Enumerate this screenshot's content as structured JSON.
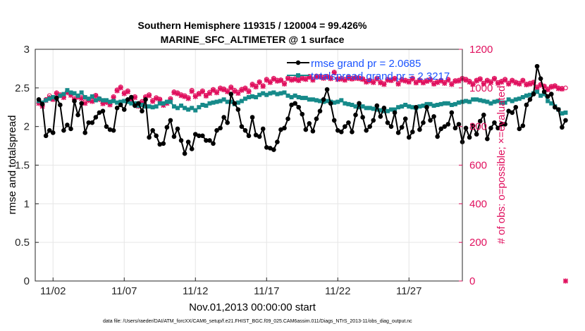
{
  "chart_data": {
    "type": "line",
    "title": "Southern Hemisphere 119315 / 120004 = 99.426%",
    "subtitle": "MARINE_SFC_ALTIMETER @ 1 surface",
    "xlabel": "Nov.01,2013 00:00:00 start",
    "ylabel_left": "rmse and totalspread",
    "ylabel_right": "# of obs: o=possible; ×=evaluated",
    "footnote": "data file: /Users/raeder/DAI/ATM_forcXX/CAM6_setup/f.e21.FHIST_BGC.f09_025.CAM6assim.011/Diags_NTrS_2013-11/obs_diag_output.nc",
    "x_range": [
      0.75,
      30.75
    ],
    "y_left_range": [
      0,
      3
    ],
    "y_right_range": [
      0,
      1200
    ],
    "x_ticks": [
      {
        "value": 2,
        "label": "11/02"
      },
      {
        "value": 7,
        "label": "11/07"
      },
      {
        "value": 12,
        "label": "11/12"
      },
      {
        "value": 17,
        "label": "11/17"
      },
      {
        "value": 22,
        "label": "11/22"
      },
      {
        "value": 27,
        "label": "11/27"
      }
    ],
    "y_left_ticks": [
      "0",
      "0.5",
      "1",
      "1.5",
      "2",
      "2.5",
      "3"
    ],
    "y_right_ticks": [
      "0",
      "200",
      "400",
      "600",
      "800",
      "1000",
      "1200"
    ],
    "grid": true,
    "legend_position": "top-right",
    "colors": {
      "rmse": "#000000",
      "spread": "#168a8a",
      "obs": "#e0105e",
      "legend_text": "#1a53ff"
    },
    "series": [
      {
        "name": "rmse grand pr = 2.0685",
        "axis": "left",
        "x_start": 1.0,
        "x_step": 0.25,
        "values": [
          2.35,
          2.29,
          1.88,
          1.95,
          1.92,
          2.37,
          2.28,
          1.95,
          2.02,
          1.97,
          2.33,
          2.15,
          2.3,
          1.92,
          2.05,
          2.05,
          2.12,
          2.18,
          2.2,
          2.0,
          1.96,
          1.95,
          2.24,
          2.28,
          2.22,
          2.35,
          2.38,
          2.27,
          2.3,
          2.2,
          2.35,
          1.86,
          1.95,
          1.88,
          1.77,
          1.78,
          1.99,
          2.08,
          1.87,
          1.97,
          1.82,
          1.65,
          1.8,
          1.71,
          1.9,
          1.88,
          1.88,
          1.82,
          1.82,
          1.78,
          1.95,
          1.98,
          2.12,
          2.05,
          2.42,
          2.3,
          2.22,
          2.0,
          1.95,
          1.88,
          2.12,
          1.89,
          1.87,
          1.97,
          1.73,
          1.72,
          1.7,
          1.8,
          1.96,
          1.98,
          2.1,
          2.28,
          2.3,
          2.25,
          2.16,
          1.96,
          2.04,
          1.94,
          2.1,
          2.2,
          2.35,
          2.48,
          2.3,
          2.08,
          1.95,
          1.93,
          2.0,
          2.05,
          1.93,
          2.15,
          2.3,
          2.12,
          1.95,
          2.0,
          2.08,
          2.27,
          2.13,
          2.24,
          2.05,
          2.0,
          2.18,
          1.92,
          1.99,
          2.1,
          1.86,
          1.93,
          2.25,
          1.96,
          2.05,
          2.25,
          2.08,
          2.13,
          1.87,
          1.97,
          2.0,
          2.03,
          2.18,
          1.98,
          2.03,
          1.8,
          1.98,
          1.86,
          2.01,
          1.9,
          2.07,
          2.15,
          1.84,
          1.98,
          2.05,
          1.98,
          2.03,
          2.03,
          2.2,
          2.18,
          2.25,
          1.97,
          2.01,
          2.28,
          2.35,
          2.42,
          2.78,
          2.62,
          2.45,
          2.39,
          2.42,
          2.25,
          2.22,
          1.99,
          2.08
        ]
      },
      {
        "name": "totalspread grand pr = 2.3217",
        "axis": "left",
        "x_start": 1.0,
        "x_step": 0.25,
        "values": [
          2.33,
          2.31,
          2.34,
          2.36,
          2.38,
          2.36,
          2.4,
          2.42,
          2.47,
          2.44,
          2.43,
          2.4,
          2.44,
          2.38,
          2.36,
          2.39,
          2.34,
          2.36,
          2.34,
          2.34,
          2.32,
          2.33,
          2.31,
          2.32,
          2.33,
          2.32,
          2.3,
          2.3,
          2.27,
          2.28,
          2.26,
          2.26,
          2.25,
          2.26,
          2.3,
          2.3,
          2.32,
          2.32,
          2.26,
          2.24,
          2.27,
          2.24,
          2.22,
          2.24,
          2.21,
          2.25,
          2.28,
          2.27,
          2.3,
          2.31,
          2.32,
          2.33,
          2.35,
          2.32,
          2.32,
          2.29,
          2.31,
          2.33,
          2.36,
          2.38,
          2.39,
          2.38,
          2.41,
          2.43,
          2.41,
          2.43,
          2.44,
          2.42,
          2.43,
          2.44,
          2.4,
          2.38,
          2.4,
          2.38,
          2.37,
          2.37,
          2.35,
          2.35,
          2.34,
          2.33,
          2.32,
          2.33,
          2.32,
          2.31,
          2.32,
          2.34,
          2.3,
          2.29,
          2.28,
          2.26,
          2.25,
          2.26,
          2.24,
          2.24,
          2.23,
          2.22,
          2.21,
          2.2,
          2.2,
          2.22,
          2.22,
          2.25,
          2.26,
          2.28,
          2.26,
          2.25,
          2.24,
          2.26,
          2.27,
          2.29,
          2.29,
          2.27,
          2.28,
          2.29,
          2.3,
          2.3,
          2.28,
          2.29,
          2.31,
          2.32,
          2.33,
          2.32,
          2.35,
          2.35,
          2.34,
          2.33,
          2.32,
          2.3,
          2.32,
          2.33,
          2.31,
          2.31,
          2.35,
          2.33,
          2.35,
          2.36,
          2.38,
          2.4,
          2.41,
          2.43,
          2.45,
          2.4,
          2.42,
          2.33,
          2.3,
          2.26,
          2.22,
          2.17,
          2.18
        ]
      },
      {
        "name": "possible",
        "axis": "right",
        "x_start": 1.0,
        "x_step": 0.25,
        "values": [
          925,
          910,
          940,
          960,
          945,
          975,
          965,
          955,
          980,
          968,
          945,
          958,
          950,
          928,
          940,
          935,
          962,
          945,
          925,
          930,
          918,
          955,
          990,
          1005,
          975,
          985,
          940,
          955,
          910,
          930,
          955,
          965,
          935,
          950,
          942,
          915,
          925,
          945,
          980,
          975,
          965,
          960,
          950,
          988,
          960,
          972,
          985,
          962,
          978,
          992,
          980,
          1000,
          995,
          985,
          1005,
          988,
          978,
          993,
          1000,
          985,
          1020,
          1010,
          1032,
          1012,
          1045,
          1032,
          1050,
          1040,
          1042,
          1025,
          1052,
          1045,
          1048,
          1042,
          1052,
          1048,
          1060,
          1045,
          1062,
          1060,
          1055,
          1060,
          1052,
          1082,
          1048,
          1050,
          1045,
          1055,
          1050,
          1055,
          1052,
          1048,
          1035,
          1040,
          1032,
          1050,
          1030,
          1022,
          1045,
          1042,
          1050,
          1025,
          1045,
          1040,
          1035,
          1050,
          1030,
          1042,
          1030,
          1038,
          1045,
          1025,
          1032,
          1040,
          1028,
          1045,
          1022,
          1038,
          1040,
          1050,
          1045,
          1035,
          1022,
          1040,
          1048,
          1025,
          1040,
          1032,
          1050,
          1028,
          1035,
          1045,
          1025,
          1040,
          1030,
          1025,
          1040,
          1020,
          1025,
          1030,
          1005,
          1018,
          1010,
          995,
          1008,
          1012,
          1000,
          998,
          1000
        ]
      },
      {
        "name": "evaluated",
        "axis": "right",
        "x_start": 1.0,
        "x_step": 0.25,
        "values": [
          920,
          905,
          935,
          950,
          940,
          970,
          960,
          950,
          975,
          962,
          940,
          952,
          945,
          920,
          935,
          930,
          958,
          940,
          918,
          925,
          912,
          950,
          985,
          1000,
          970,
          980,
          935,
          950,
          905,
          925,
          950,
          960,
          930,
          945,
          938,
          910,
          920,
          940,
          975,
          970,
          960,
          955,
          945,
          982,
          955,
          968,
          980,
          958,
          972,
          988,
          975,
          995,
          990,
          980,
          1000,
          982,
          972,
          988,
          995,
          980,
          1015,
          1005,
          1028,
          1008,
          1040,
          1028,
          1045,
          1035,
          1038,
          1020,
          1048,
          1040,
          1044,
          1038,
          1048,
          1044,
          1055,
          1040,
          1058,
          1056,
          1050,
          1056,
          1048,
          1078,
          1044,
          1046,
          1040,
          1050,
          1046,
          1050,
          1048,
          1044,
          1030,
          1036,
          1028,
          1046,
          1026,
          1018,
          1040,
          1038,
          1046,
          1020,
          1040,
          1036,
          1030,
          1046,
          1026,
          1038,
          1026,
          1034,
          1040,
          1020,
          1028,
          1036,
          1024,
          1040,
          1018,
          1034,
          1036,
          1046,
          1040,
          1030,
          1018,
          1036,
          1044,
          1020,
          1036,
          1028,
          1046,
          1024,
          1030,
          1040,
          1020,
          1036,
          1026,
          1020,
          1036,
          1016,
          1020,
          1026,
          1000,
          1014,
          1006,
          990,
          1004,
          1008,
          996,
          994,
          0
        ]
      }
    ]
  }
}
